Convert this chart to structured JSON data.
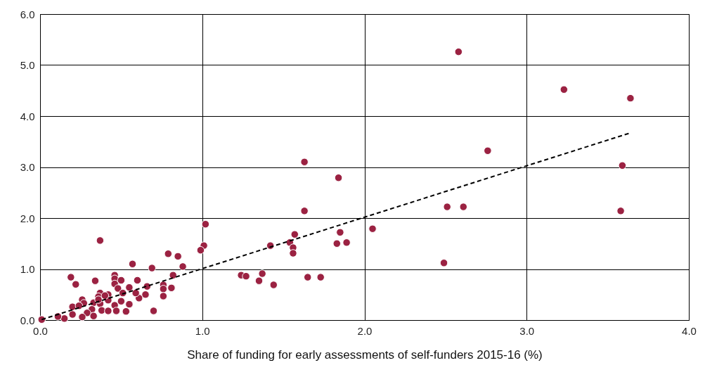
{
  "chart_data": {
    "type": "scatter",
    "xlabel": "Share of funding for early assessments of self-funders 2015-16 (%)",
    "xlim": [
      0,
      4
    ],
    "ylim": [
      0,
      6
    ],
    "xticks": [
      {
        "value": 0,
        "label": "0.0"
      },
      {
        "value": 1,
        "label": "1.0"
      },
      {
        "value": 2,
        "label": "2.0"
      },
      {
        "value": 3,
        "label": "3.0"
      },
      {
        "value": 4,
        "label": "4.0"
      }
    ],
    "yticks": [
      {
        "value": 0,
        "label": "0.0"
      },
      {
        "value": 1,
        "label": "1.0"
      },
      {
        "value": 2,
        "label": "2.0"
      },
      {
        "value": 3,
        "label": "3.0"
      },
      {
        "value": 4,
        "label": "4.0"
      },
      {
        "value": 5,
        "label": "5.0"
      },
      {
        "value": 6,
        "label": "6.0"
      }
    ],
    "grid": true,
    "marker": "circle",
    "series": [
      {
        "color": "#9b2242",
        "x": [
          2.58,
          3.23,
          3.64,
          2.76,
          3.59,
          3.58,
          2.51,
          2.61,
          2.49,
          2.05,
          1.63,
          1.84,
          1.63,
          1.02,
          1.01,
          0.99,
          1.42,
          1.57,
          1.54,
          1.56,
          1.56,
          1.85,
          1.83,
          1.89,
          1.24,
          1.27,
          1.37,
          1.35,
          1.44,
          1.65,
          1.73,
          0.37,
          0.79,
          0.85,
          0.57,
          0.69,
          0.88,
          0.19,
          0.22,
          0.34,
          0.46,
          0.46,
          0.5,
          0.46,
          0.48,
          0.55,
          0.6,
          0.66,
          0.76,
          0.76,
          0.82,
          0.81,
          0.76,
          0.7,
          0.65,
          0.61,
          0.59,
          0.51,
          0.42,
          0.37,
          0.36,
          0.33,
          0.26,
          0.27,
          0.2,
          0.42,
          0.5,
          0.55,
          0.46,
          0.37,
          0.38,
          0.42,
          0.47,
          0.53,
          0.32,
          0.29,
          0.33,
          0.26,
          0.2,
          0.15,
          0.11,
          0.01,
          0.24,
          0.36,
          0.4
        ],
        "values": [
          5.26,
          4.52,
          4.35,
          3.32,
          3.03,
          2.14,
          2.22,
          2.22,
          1.12,
          1.79,
          3.1,
          2.79,
          2.14,
          1.88,
          1.46,
          1.37,
          1.46,
          1.68,
          1.52,
          1.42,
          1.31,
          1.72,
          1.5,
          1.52,
          0.88,
          0.86,
          0.91,
          0.77,
          0.69,
          0.84,
          0.84,
          1.56,
          1.3,
          1.25,
          1.1,
          1.02,
          1.05,
          0.84,
          0.7,
          0.77,
          0.88,
          0.81,
          0.78,
          0.71,
          0.62,
          0.64,
          0.78,
          0.66,
          0.69,
          0.61,
          0.88,
          0.63,
          0.47,
          0.18,
          0.5,
          0.43,
          0.53,
          0.53,
          0.5,
          0.53,
          0.46,
          0.34,
          0.4,
          0.33,
          0.26,
          0.39,
          0.37,
          0.31,
          0.29,
          0.32,
          0.19,
          0.18,
          0.18,
          0.17,
          0.21,
          0.14,
          0.08,
          0.06,
          0.11,
          0.03,
          0.07,
          0.01,
          0.28,
          0.4,
          0.48
        ]
      },
      {
        "type": "line",
        "color": "#000000",
        "line_style": "dashed",
        "marker": "none",
        "x": [
          0.01,
          3.63
        ],
        "values": [
          0.01,
          3.66
        ]
      }
    ]
  }
}
